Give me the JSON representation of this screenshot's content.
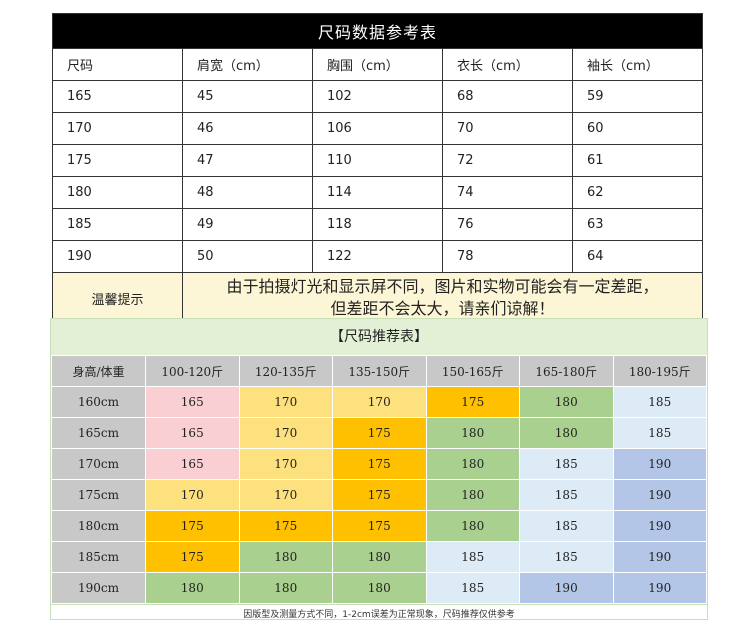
{
  "size_table": {
    "title": "尺码数据参考表",
    "headers": [
      "尺码",
      "肩宽（cm）",
      "胸围（cm）",
      "衣长（cm）",
      "袖长（cm）"
    ],
    "rows": [
      [
        "165",
        "45",
        "102",
        "68",
        "59"
      ],
      [
        "170",
        "46",
        "106",
        "70",
        "60"
      ],
      [
        "175",
        "47",
        "110",
        "72",
        "61"
      ],
      [
        "180",
        "48",
        "114",
        "74",
        "62"
      ],
      [
        "185",
        "49",
        "118",
        "76",
        "63"
      ],
      [
        "190",
        "50",
        "122",
        "78",
        "64"
      ]
    ],
    "tip_label": "温馨提示",
    "tip_line1": "由于拍摄灯光和显示屏不同，图片和实物可能会有一定差距，",
    "tip_line2": "但差距不会太大，请亲们谅解！"
  },
  "recommend": {
    "title": "【尺码推荐表】",
    "corner": "身高/体重",
    "weights": [
      "100-120斤",
      "120-135斤",
      "135-150斤",
      "150-165斤",
      "165-180斤",
      "180-195斤"
    ],
    "rows": [
      {
        "height": "160cm",
        "cells": [
          {
            "v": "165",
            "c": "pink"
          },
          {
            "v": "170",
            "c": "yellow"
          },
          {
            "v": "170",
            "c": "yellow"
          },
          {
            "v": "175",
            "c": "orange"
          },
          {
            "v": "180",
            "c": "green"
          },
          {
            "v": "185",
            "c": "lblue"
          }
        ]
      },
      {
        "height": "165cm",
        "cells": [
          {
            "v": "165",
            "c": "pink"
          },
          {
            "v": "170",
            "c": "yellow"
          },
          {
            "v": "175",
            "c": "orange"
          },
          {
            "v": "180",
            "c": "green"
          },
          {
            "v": "180",
            "c": "green"
          },
          {
            "v": "185",
            "c": "lblue"
          }
        ]
      },
      {
        "height": "170cm",
        "cells": [
          {
            "v": "165",
            "c": "pink"
          },
          {
            "v": "170",
            "c": "yellow"
          },
          {
            "v": "175",
            "c": "orange"
          },
          {
            "v": "180",
            "c": "green"
          },
          {
            "v": "185",
            "c": "lblue"
          },
          {
            "v": "190",
            "c": "blue"
          }
        ]
      },
      {
        "height": "175cm",
        "cells": [
          {
            "v": "170",
            "c": "yellow"
          },
          {
            "v": "170",
            "c": "yellow"
          },
          {
            "v": "175",
            "c": "orange"
          },
          {
            "v": "180",
            "c": "green"
          },
          {
            "v": "185",
            "c": "lblue"
          },
          {
            "v": "190",
            "c": "blue"
          }
        ]
      },
      {
        "height": "180cm",
        "cells": [
          {
            "v": "175",
            "c": "orange"
          },
          {
            "v": "175",
            "c": "orange"
          },
          {
            "v": "175",
            "c": "orange"
          },
          {
            "v": "180",
            "c": "green"
          },
          {
            "v": "185",
            "c": "lblue"
          },
          {
            "v": "190",
            "c": "blue"
          }
        ]
      },
      {
        "height": "185cm",
        "cells": [
          {
            "v": "175",
            "c": "orange"
          },
          {
            "v": "180",
            "c": "green"
          },
          {
            "v": "180",
            "c": "green"
          },
          {
            "v": "185",
            "c": "lblue"
          },
          {
            "v": "185",
            "c": "lblue"
          },
          {
            "v": "190",
            "c": "blue"
          }
        ]
      },
      {
        "height": "190cm",
        "cells": [
          {
            "v": "180",
            "c": "green"
          },
          {
            "v": "180",
            "c": "green"
          },
          {
            "v": "180",
            "c": "green"
          },
          {
            "v": "185",
            "c": "lblue"
          },
          {
            "v": "190",
            "c": "blue"
          },
          {
            "v": "190",
            "c": "blue"
          }
        ]
      }
    ],
    "note": "因版型及测量方式不同，1-2cm误差为正常现象，尺码推荐仅供参考"
  },
  "colors": {
    "pink": "#f9cfd3",
    "yellow": "#fde17e",
    "orange": "#ffc000",
    "green": "#a9d08e",
    "lblue": "#ddebf7",
    "blue": "#b4c6e7",
    "header_gray": "#c8c8c8",
    "tip_bg": "#fdf6d6",
    "title_bg": "#000000"
  }
}
